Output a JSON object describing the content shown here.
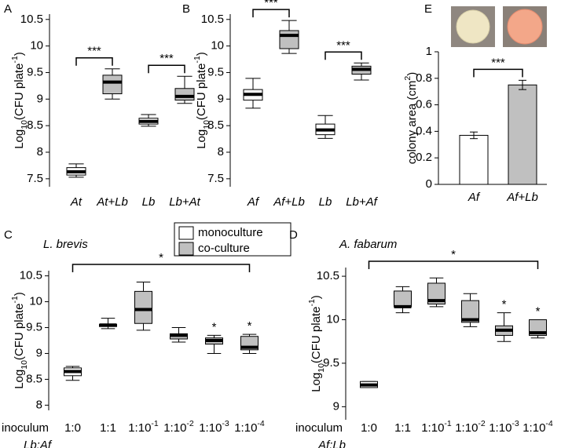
{
  "chart_data": [
    {
      "type": "box",
      "panel_label": "A",
      "y_label": "Log10(CFU plate-1)",
      "categories": [
        "At",
        "At+Lb",
        "Lb",
        "Lb+At"
      ],
      "boxes": [
        {
          "min": 7.53,
          "q1": 7.57,
          "median": 7.63,
          "q3": 7.71,
          "max": 7.78,
          "color": "#ffffff"
        },
        {
          "min": 9.0,
          "q1": 9.1,
          "median": 9.32,
          "q3": 9.45,
          "max": 9.57,
          "color": "#c0c0c0"
        },
        {
          "min": 8.49,
          "q1": 8.53,
          "median": 8.58,
          "q3": 8.64,
          "max": 8.71,
          "color": "#ffffff"
        },
        {
          "min": 8.92,
          "q1": 8.98,
          "median": 9.05,
          "q3": 9.2,
          "max": 9.43,
          "color": "#c0c0c0"
        }
      ],
      "annotations": [
        {
          "text": "***",
          "from": 0,
          "to": 1
        },
        {
          "text": "***",
          "from": 2,
          "to": 3
        }
      ],
      "ylim": [
        7.35,
        10.6
      ],
      "yticks": [
        7.5,
        8.0,
        8.5,
        9.0,
        9.5,
        10.0,
        10.5
      ]
    },
    {
      "type": "box",
      "panel_label": "B",
      "y_label": "Log10(CFU plate-1)",
      "categories": [
        "Af",
        "Af+Lb",
        "Lb",
        "Lb+Af"
      ],
      "boxes": [
        {
          "min": 8.83,
          "q1": 8.98,
          "median": 9.09,
          "q3": 9.18,
          "max": 9.39,
          "color": "#ffffff"
        },
        {
          "min": 9.86,
          "q1": 9.95,
          "median": 10.2,
          "q3": 10.29,
          "max": 10.48,
          "color": "#c0c0c0"
        },
        {
          "min": 8.26,
          "q1": 8.33,
          "median": 8.42,
          "q3": 8.53,
          "max": 8.69,
          "color": "#ffffff"
        },
        {
          "min": 9.36,
          "q1": 9.47,
          "median": 9.56,
          "q3": 9.62,
          "max": 9.68,
          "color": "#c0c0c0"
        }
      ],
      "annotations": [
        {
          "text": "***",
          "from": 0,
          "to": 1
        },
        {
          "text": "***",
          "from": 2,
          "to": 3
        }
      ],
      "ylim": [
        7.35,
        10.6
      ],
      "yticks": [
        7.5,
        8.0,
        8.5,
        9.0,
        9.5,
        10.0,
        10.5
      ]
    },
    {
      "type": "bar",
      "panel_label": "E",
      "y_label": "colony area (cm2)",
      "categories": [
        "Af",
        "Af+Lb"
      ],
      "values": [
        0.37,
        0.75
      ],
      "errors": [
        0.025,
        0.035
      ],
      "colors": [
        "#ffffff",
        "#c0c0c0"
      ],
      "annotations": [
        {
          "text": "***",
          "from": 0,
          "to": 1
        }
      ],
      "ylim": [
        0,
        1
      ],
      "yticks": [
        0,
        0.2,
        0.4,
        0.6,
        0.8,
        1
      ]
    },
    {
      "type": "box",
      "panel_label": "C",
      "title": "L. brevis",
      "y_label": "Log10(CFU plate-1)",
      "x_label": "inoculum",
      "ratio_label": "Lb:Af",
      "categories": [
        "1:0",
        "1:1",
        "1:10-1",
        "1:10-2",
        "1:10-3",
        "1:10-4"
      ],
      "boxes": [
        {
          "min": 8.48,
          "q1": 8.57,
          "median": 8.65,
          "q3": 8.72,
          "max": 8.75,
          "color": "#ffffff"
        },
        {
          "min": 9.48,
          "q1": 9.52,
          "median": 9.55,
          "q3": 9.56,
          "max": 9.68,
          "color": "#c0c0c0"
        },
        {
          "min": 9.45,
          "q1": 9.58,
          "median": 9.85,
          "q3": 10.2,
          "max": 10.38,
          "color": "#c0c0c0"
        },
        {
          "min": 9.22,
          "q1": 9.28,
          "median": 9.35,
          "q3": 9.38,
          "max": 9.5,
          "color": "#c0c0c0"
        },
        {
          "min": 9.0,
          "q1": 9.18,
          "median": 9.25,
          "q3": 9.3,
          "max": 9.35,
          "color": "#c0c0c0",
          "note": "*"
        },
        {
          "min": 9.0,
          "q1": 9.07,
          "median": 9.12,
          "q3": 9.33,
          "max": 9.37,
          "color": "#c0c0c0",
          "note": "*"
        }
      ],
      "annotations": [
        {
          "text": "*",
          "from": 0,
          "to": 5
        }
      ],
      "legend": [
        {
          "name": "monoculture",
          "color": "#ffffff"
        },
        {
          "name": "co-culture",
          "color": "#c0c0c0"
        }
      ],
      "ylim": [
        7.9,
        10.6
      ],
      "yticks": [
        8.0,
        8.5,
        9.0,
        9.5,
        10.0,
        10.5
      ]
    },
    {
      "type": "box",
      "panel_label": "D",
      "title": "A. fabarum",
      "y_label": "Log10(CFU plate-1)",
      "x_label": "inoculum",
      "ratio_label": "Af:Lb",
      "categories": [
        "1:0",
        "1:1",
        "1:10-1",
        "1:10-2",
        "1:10-3",
        "1:10-4"
      ],
      "boxes": [
        {
          "min": 9.22,
          "q1": 9.22,
          "median": 9.25,
          "q3": 9.29,
          "max": 9.29,
          "color": "#ffffff"
        },
        {
          "min": 10.08,
          "q1": 10.15,
          "median": 10.15,
          "q3": 10.33,
          "max": 10.38,
          "color": "#c0c0c0"
        },
        {
          "min": 10.15,
          "q1": 10.18,
          "median": 10.22,
          "q3": 10.42,
          "max": 10.48,
          "color": "#c0c0c0"
        },
        {
          "min": 9.92,
          "q1": 9.97,
          "median": 10.0,
          "q3": 10.22,
          "max": 10.3,
          "color": "#c0c0c0"
        },
        {
          "min": 9.75,
          "q1": 9.82,
          "median": 9.88,
          "q3": 9.93,
          "max": 10.08,
          "color": "#c0c0c0",
          "note": "*"
        },
        {
          "min": 9.79,
          "q1": 9.82,
          "median": 9.85,
          "q3": 10.0,
          "max": 10.0,
          "color": "#c0c0c0",
          "note": "*"
        }
      ],
      "annotations": [
        {
          "text": "*",
          "from": 0,
          "to": 5
        }
      ],
      "ylim": [
        8.85,
        10.6
      ],
      "yticks": [
        9.0,
        9.5,
        10.0,
        10.5
      ]
    }
  ]
}
